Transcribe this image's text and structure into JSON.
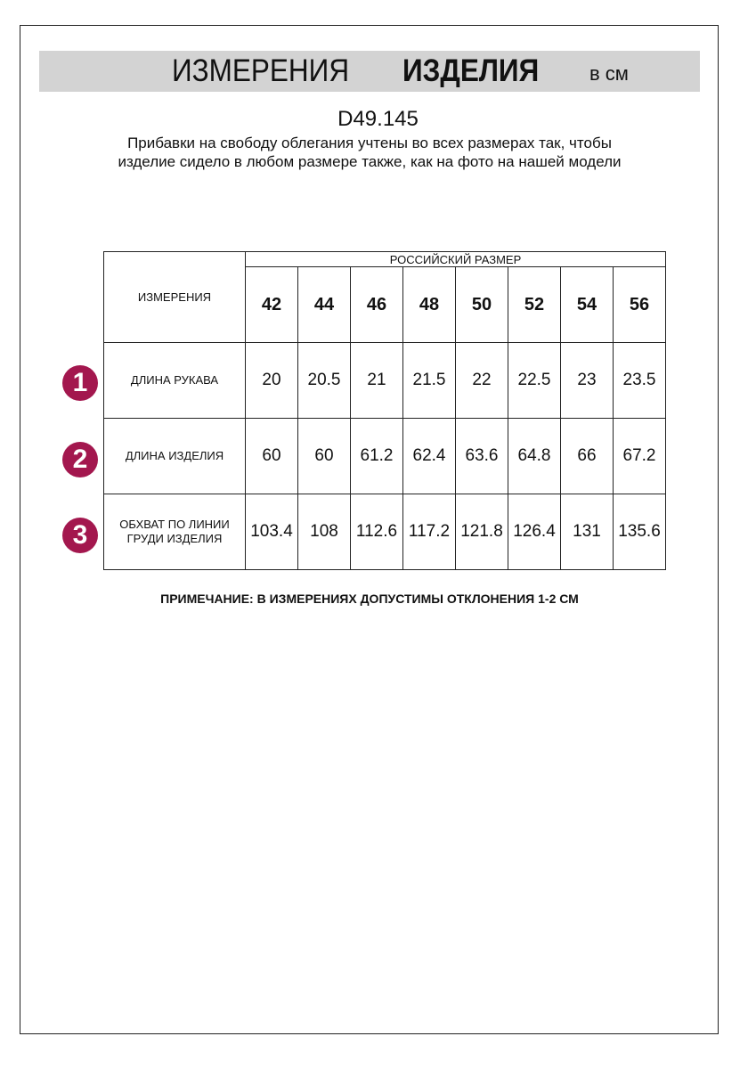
{
  "header": {
    "title_regular": "ИЗМЕРЕНИЯ",
    "title_bold": "ИЗДЕЛИЯ",
    "unit": "в см"
  },
  "product_code": "D49.145",
  "description": "Прибавки на свободу облегания учтены во всех размерах так, чтобы изделие сидело в любом размере также, как на фото на нашей модели",
  "table": {
    "corner_label": "ИЗМЕРЕНИЯ",
    "group_header": "РОССИЙСКИЙ РАЗМЕР",
    "sizes": [
      "42",
      "44",
      "46",
      "48",
      "50",
      "52",
      "54",
      "56"
    ],
    "rows": [
      {
        "num": "1",
        "label": "ДЛИНА РУКАВА",
        "values": [
          "20",
          "20.5",
          "21",
          "21.5",
          "22",
          "22.5",
          "23",
          "23.5"
        ]
      },
      {
        "num": "2",
        "label": "ДЛИНА ИЗДЕЛИЯ",
        "values": [
          "60",
          "60",
          "61.2",
          "62.4",
          "63.6",
          "64.8",
          "66",
          "67.2"
        ]
      },
      {
        "num": "3",
        "label": "ОБХВАТ ПО ЛИНИИ ГРУДИ ИЗДЕЛИЯ",
        "values": [
          "103.4",
          "108",
          "112.6",
          "117.2",
          "121.8",
          "126.4",
          "131",
          "135.6"
        ]
      }
    ]
  },
  "note": "ПРИМЕЧАНИЕ: В ИЗМЕРЕНИЯХ ДОПУСТИМЫ ОТКЛОНЕНИЯ 1-2 СМ",
  "colors": {
    "badge": "#a3174e",
    "header_bar": "#d3d3d3"
  }
}
